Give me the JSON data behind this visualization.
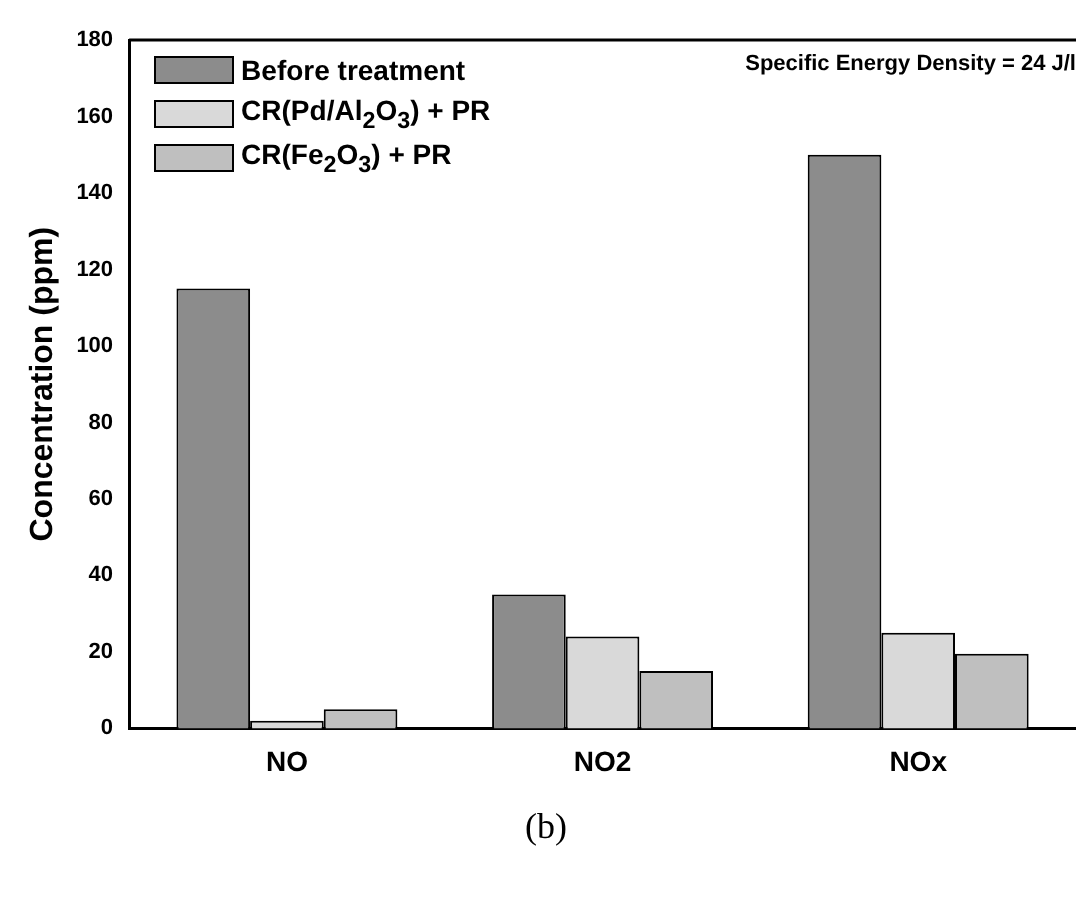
{
  "chart_data": {
    "type": "bar",
    "categories": [
      "NO",
      "NO2",
      "NOx"
    ],
    "ylabel": "Concentration (ppm)",
    "ylim": [
      0,
      180
    ],
    "yticks": [
      0,
      20,
      40,
      60,
      80,
      100,
      120,
      140,
      160,
      180
    ],
    "grid": false,
    "legend": "top left",
    "series": [
      {
        "name": "Before treatment",
        "color": "#8c8c8c",
        "values": [
          115,
          35,
          150
        ]
      },
      {
        "name": "CR(Pd/Al$_{2}$O$_{3}$) + PR",
        "color": "#d9d9d9",
        "values": [
          2,
          24,
          25
        ]
      },
      {
        "name": "CR(Fe$_{2}$O$_{3}$) + PR",
        "color": "#bfbfbf",
        "values": [
          5,
          15,
          19.5
        ]
      }
    ],
    "annotations": [
      "Specific Energy Density = 24 J/l",
      "(b)"
    ]
  }
}
